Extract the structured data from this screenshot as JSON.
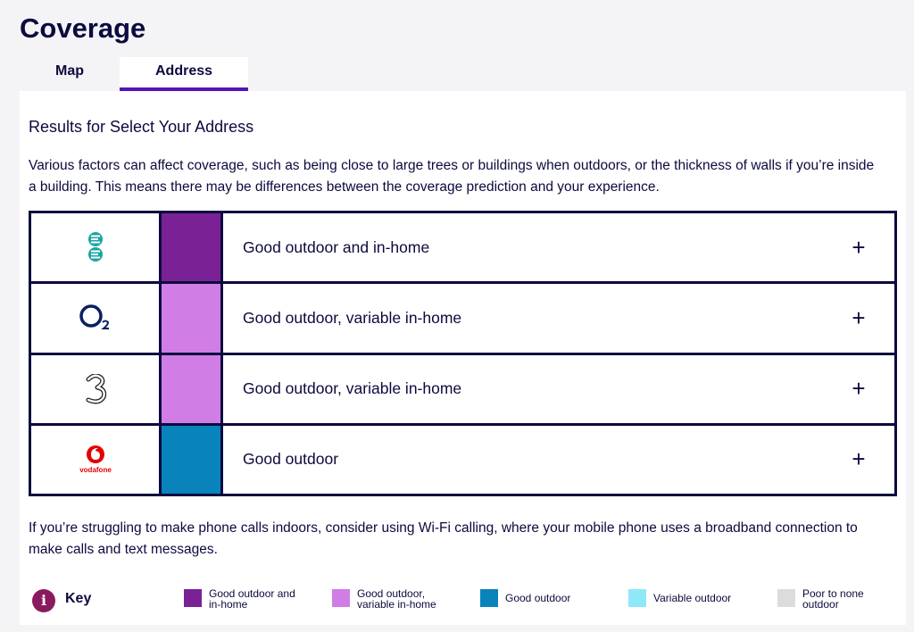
{
  "page": {
    "title": "Coverage"
  },
  "tabs": [
    {
      "label": "Map",
      "active": false
    },
    {
      "label": "Address",
      "active": true
    }
  ],
  "results": {
    "title": "Results for Select Your Address",
    "intro": "Various factors can affect coverage, such as being close to large trees or buildings when outdoors, or the thickness of walls if you’re inside a building. This means there may be differences between the coverage prediction and your experience."
  },
  "networks": [
    {
      "logo_icon": "ee-logo-icon",
      "coverage_color": "#7b2196",
      "label": "Good outdoor and in-home",
      "expand_symbol": "+"
    },
    {
      "logo_icon": "o2-logo-icon",
      "coverage_color": "#d07de6",
      "label": "Good outdoor, variable in-home",
      "expand_symbol": "+"
    },
    {
      "logo_icon": "three-logo-icon",
      "coverage_color": "#d07de6",
      "label": "Good outdoor, variable in-home",
      "expand_symbol": "+"
    },
    {
      "logo_icon": "vodafone-logo-icon",
      "logo_text": "vodafone",
      "coverage_color": "#0883bb",
      "label": "Good outdoor",
      "expand_symbol": "+"
    }
  ],
  "calling_note": "If you’re struggling to make phone calls indoors, consider using Wi-Fi calling, where your mobile phone uses a broadband connection to make calls and text messages.",
  "key": {
    "info_icon": "info-icon",
    "info_symbol": "i",
    "label": "Key",
    "items": [
      {
        "color": "#7b2196",
        "line1": "Good outdoor and",
        "line2": "in-home"
      },
      {
        "color": "#d07de6",
        "line1": "Good outdoor,",
        "line2": "variable in-home"
      },
      {
        "color": "#0883bb",
        "line1": "Good outdoor",
        "line2": ""
      },
      {
        "color": "#8ee8f7",
        "line1": "Variable outdoor",
        "line2": ""
      },
      {
        "color": "#dcdcdc",
        "line1": "Poor to none",
        "line2": "outdoor"
      }
    ]
  },
  "colors": {
    "brand_purple": "#5514b4",
    "navy_text": "#0c0a3e",
    "ee_teal": "#1aa5a5",
    "o2_navy": "#0b1f62",
    "vodafone_red": "#e60000"
  }
}
